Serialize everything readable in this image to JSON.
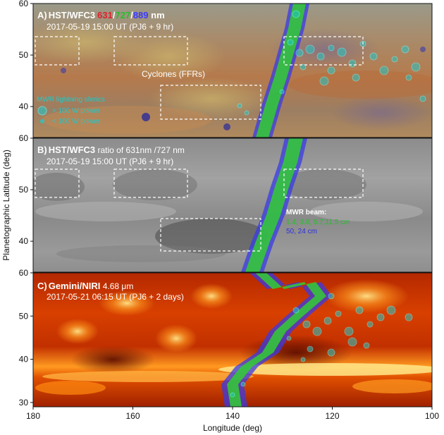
{
  "panels": [
    {
      "letter": "A)",
      "instrument": "HST/WFC3",
      "bands": [
        {
          "text": "631",
          "color": "#e0202c"
        },
        {
          "text": "/",
          "color": "#ffffff"
        },
        {
          "text": "727",
          "color": "#22c02a"
        },
        {
          "text": "/",
          "color": "#ffffff"
        },
        {
          "text": "889",
          "color": "#3a3aff"
        },
        {
          "text": " nm",
          "color": "#ffffff"
        }
      ],
      "subtitle": "2017-05-19 15:00 UT (PJ6 + 9 hr)",
      "annotation": "Cyclones (FFRs)",
      "legend": {
        "title": "MWR lightning sferics",
        "items": [
          "> 100 W power",
          "< 100 W power"
        ],
        "color": "#22c8c8"
      }
    },
    {
      "letter": "B)",
      "instrument": "HST/WFC3",
      "rest": " ratio of 631nm /727 nm",
      "subtitle": "2017-05-19 15:00 UT (PJ6 + 9 hr)",
      "beam_legend": {
        "title": "MWR beam:",
        "items": [
          {
            "text": "1.4, 3.0, 5.7,11.5 cm",
            "color": "#22c02a"
          },
          {
            "text": "50, 24 cm",
            "color": "#3030e0"
          }
        ]
      }
    },
    {
      "letter": "C)",
      "instrument": "Gemini/NIRI",
      "rest": " 4.68 μm",
      "subtitle": "2017-05-21 06:15 UT (PJ6 + 2 days)"
    }
  ],
  "axes": {
    "xlabel": "Longitude (deg)",
    "ylabel": "Planetographic Latitude (deg)",
    "xlim": [
      180,
      100
    ],
    "xticks": [
      "180",
      "160",
      "140",
      "120",
      "100"
    ],
    "panel_ylim": [
      [
        34,
        60
      ],
      [
        34,
        60
      ],
      [
        29,
        60
      ]
    ],
    "panel_yticks": [
      [
        "40",
        "50",
        "60"
      ],
      [
        "40",
        "50",
        "60"
      ],
      [
        "30",
        "40",
        "50",
        "60"
      ]
    ]
  },
  "colors": {
    "beam_green": "#33cc33",
    "beam_blue": "#3a3ae6",
    "sferic": "#22c8c8"
  }
}
